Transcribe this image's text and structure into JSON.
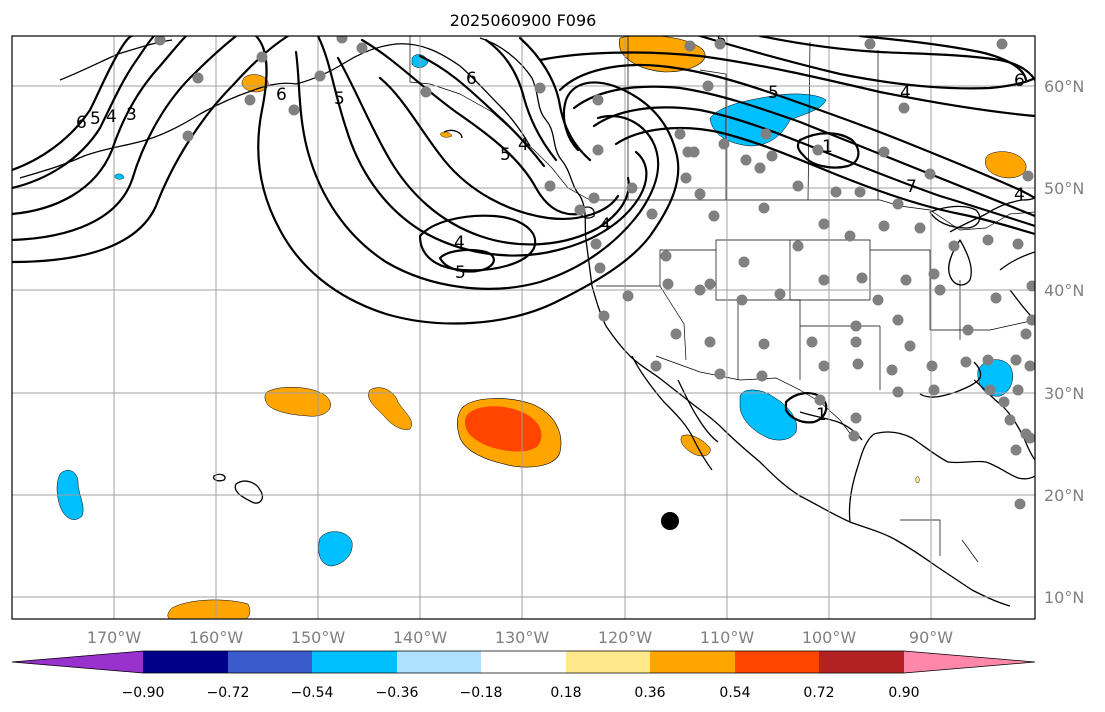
{
  "title": "2025060900 F096",
  "lon_labels": [
    "170°W",
    "160°W",
    "150°W",
    "140°W",
    "130°W",
    "120°W",
    "110°W",
    "100°W",
    "90°W"
  ],
  "lat_labels": [
    "60°N",
    "50°N",
    "40°N",
    "30°N",
    "20°N",
    "10°N"
  ],
  "colorbar": {
    "tick_labels": [
      "−0.90",
      "−0.72",
      "−0.54",
      "−0.36",
      "−0.18",
      "0.18",
      "0.36",
      "0.54",
      "0.72",
      "0.90"
    ],
    "colors": [
      "#9932cc",
      "#00008b",
      "#3a5bcc",
      "#00bfff",
      "#b0e0ff",
      "#ffffff",
      "#ffe98a",
      "#ffa500",
      "#ff4500",
      "#b22222",
      "#ff88aa"
    ]
  },
  "contour_labels": [
    "6",
    "5",
    "4",
    "3",
    "6",
    "5",
    "4",
    "5",
    "4",
    "5",
    "4",
    "5",
    "6",
    "4",
    "7",
    "6",
    "5",
    "4",
    "1",
    "1"
  ],
  "colors": {
    "point_marker": "#808080",
    "center_marker": "#000000",
    "grid": "#a0a0a0"
  }
}
